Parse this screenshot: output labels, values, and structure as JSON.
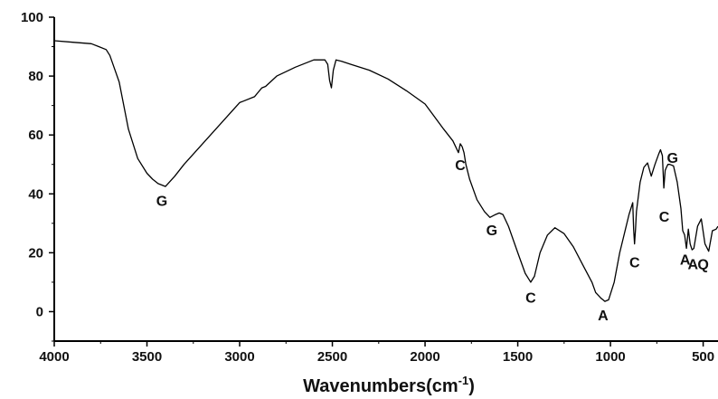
{
  "chart_data": {
    "type": "line",
    "xlabel": "Wavenumbers(cm",
    "xlabel_sup": "-1",
    "xlabel_close": ")",
    "ylabel": "",
    "xlim": [
      4000,
      420
    ],
    "ylim": [
      -10,
      100
    ],
    "x_reversed": true,
    "grid": false,
    "x_ticks": [
      4000,
      3500,
      3000,
      2500,
      2000,
      1500,
      1000,
      500
    ],
    "x_tick_labels": [
      "4000",
      "3500",
      "3000",
      "2500",
      "2000",
      "1500",
      "1000",
      "500"
    ],
    "y_ticks": [
      0,
      20,
      40,
      60,
      80,
      100
    ],
    "y_tick_labels": [
      "0",
      "20",
      "40",
      "60",
      "80",
      "100"
    ],
    "series": [
      {
        "x": [
          4000,
          3900,
          3800,
          3760,
          3720,
          3700,
          3650,
          3600,
          3550,
          3500,
          3470,
          3440,
          3420,
          3400,
          3350,
          3300,
          3200,
          3100,
          3000,
          2980,
          2920,
          2900,
          2880,
          2860,
          2800,
          2700,
          2600,
          2540,
          2525,
          2515,
          2505,
          2495,
          2480,
          2450,
          2400,
          2300,
          2200,
          2100,
          2000,
          1900,
          1850,
          1820,
          1810,
          1800,
          1790,
          1780,
          1760,
          1720,
          1680,
          1650,
          1620,
          1600,
          1580,
          1550,
          1500,
          1460,
          1440,
          1430,
          1410,
          1380,
          1340,
          1300,
          1250,
          1200,
          1150,
          1100,
          1080,
          1050,
          1040,
          1030,
          1010,
          980,
          950,
          900,
          880,
          875,
          870,
          865,
          860,
          840,
          820,
          800,
          780,
          760,
          740,
          730,
          720,
          712,
          705,
          698,
          690,
          680,
          660,
          640,
          620,
          610,
          600,
          590,
          580,
          570,
          560,
          550,
          530,
          510,
          490,
          470,
          450,
          430,
          420
        ],
        "y": [
          92,
          91.5,
          91,
          90,
          89,
          87,
          78,
          62,
          52,
          47,
          45,
          43.5,
          43,
          42.5,
          46,
          50,
          57,
          64,
          71,
          71.5,
          73,
          74.5,
          76,
          76.5,
          80,
          83,
          85.5,
          85.5,
          84,
          78.5,
          76,
          82,
          85.5,
          85,
          84,
          82,
          79,
          75,
          70.5,
          62,
          58,
          54,
          57,
          56,
          54,
          50,
          45,
          38,
          34,
          32,
          33,
          33.5,
          33,
          29,
          20,
          13,
          11,
          10,
          12,
          20,
          26,
          28.5,
          26.5,
          22,
          16,
          10,
          6.5,
          4.5,
          4,
          3.5,
          4,
          10,
          20,
          33,
          37,
          28,
          23,
          28,
          34,
          44,
          49,
          50.5,
          46,
          50,
          53.5,
          55,
          53,
          42,
          48,
          49,
          50,
          50,
          49.5,
          44,
          35,
          27.5,
          26,
          21.5,
          28,
          23,
          21,
          21.5,
          29,
          31.5,
          23,
          20.5,
          27.5,
          28,
          29
        ]
      }
    ],
    "annotations": [
      {
        "text": "G",
        "x": 3420,
        "y": 36
      },
      {
        "text": "C",
        "x": 1810,
        "y": 48
      },
      {
        "text": "G",
        "x": 1640,
        "y": 26
      },
      {
        "text": "C",
        "x": 1430,
        "y": 3
      },
      {
        "text": "A",
        "x": 1040,
        "y": -3
      },
      {
        "text": "C",
        "x": 870,
        "y": 15
      },
      {
        "text": "C",
        "x": 710,
        "y": 30.5
      },
      {
        "text": "G",
        "x": 665,
        "y": 50.5
      },
      {
        "text": "A",
        "x": 597,
        "y": 16
      },
      {
        "text": "A",
        "x": 555,
        "y": 14.5
      },
      {
        "text": "Q",
        "x": 500,
        "y": 14.5
      }
    ]
  }
}
